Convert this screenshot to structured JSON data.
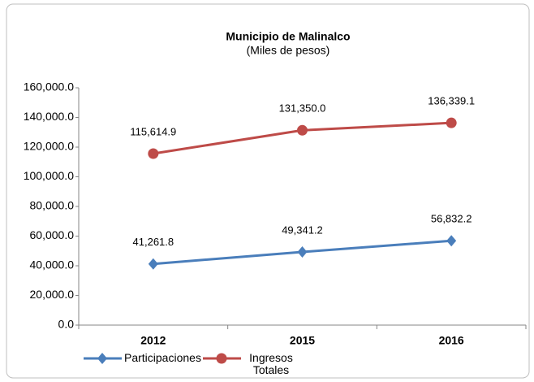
{
  "chart_data": {
    "type": "line",
    "title": "Municipio de Malinalco",
    "subtitle": "(Miles de pesos)",
    "categories": [
      "2012",
      "2015",
      "2016"
    ],
    "series": [
      {
        "name": "Participaciones",
        "color": "#4a7ebb",
        "marker": "diamond",
        "values": [
          41261.8,
          49341.2,
          56832.2
        ],
        "value_labels": [
          "41,261.8",
          "49,341.2",
          "56,832.2"
        ]
      },
      {
        "name": "Ingresos Totales",
        "color": "#be4b48",
        "marker": "circle",
        "values": [
          115614.9,
          131350.0,
          136339.1
        ],
        "value_labels": [
          "115,614.9",
          "131,350.0",
          "136,339.1"
        ]
      }
    ],
    "ylim": [
      0,
      160000
    ],
    "yticks": [
      {
        "value": 0,
        "label": "0.0"
      },
      {
        "value": 20000,
        "label": "20,000.0"
      },
      {
        "value": 40000,
        "label": "40,000.0"
      },
      {
        "value": 60000,
        "label": "60,000.0"
      },
      {
        "value": 80000,
        "label": "80,000.0"
      },
      {
        "value": 100000,
        "label": "100,000.0"
      },
      {
        "value": 120000,
        "label": "120,000.0"
      },
      {
        "value": 140000,
        "label": "140,000.0"
      },
      {
        "value": 160000,
        "label": "160,000.0"
      }
    ],
    "grid": false,
    "legend": "bottom"
  }
}
